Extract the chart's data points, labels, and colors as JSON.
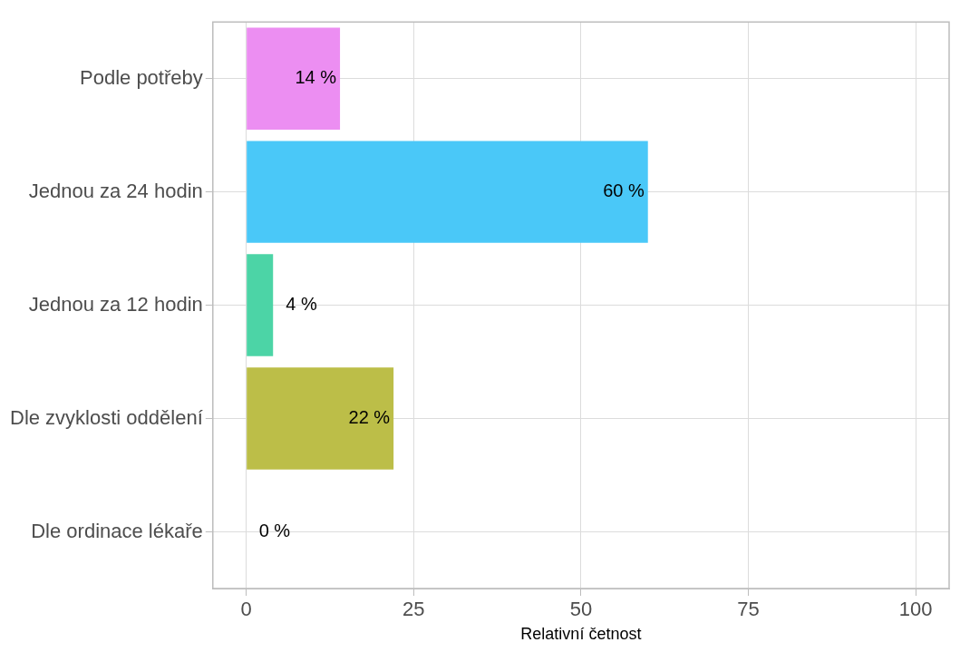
{
  "chart_data": {
    "type": "bar",
    "orientation": "horizontal",
    "xlabel": "Relativní četnost",
    "categories": [
      "Podle potřeby",
      "Jednou za 24 hodin",
      "Jednou za 12 hodin",
      "Dle zvyklosti oddělení",
      "Dle ordinace lékaře"
    ],
    "values": [
      14,
      60,
      4,
      22,
      0
    ],
    "colors": [
      "#ec8ef2",
      "#4ac8f8",
      "#4cd4a6",
      "#bcbe48",
      "#f48a84"
    ],
    "value_labels": [
      "14 %",
      "60 %",
      "4 %",
      "22 %",
      "0 %"
    ],
    "xlim": [
      -5,
      105
    ],
    "xticks": [
      0,
      25,
      50,
      75,
      100
    ],
    "grid": true,
    "legend": false
  }
}
